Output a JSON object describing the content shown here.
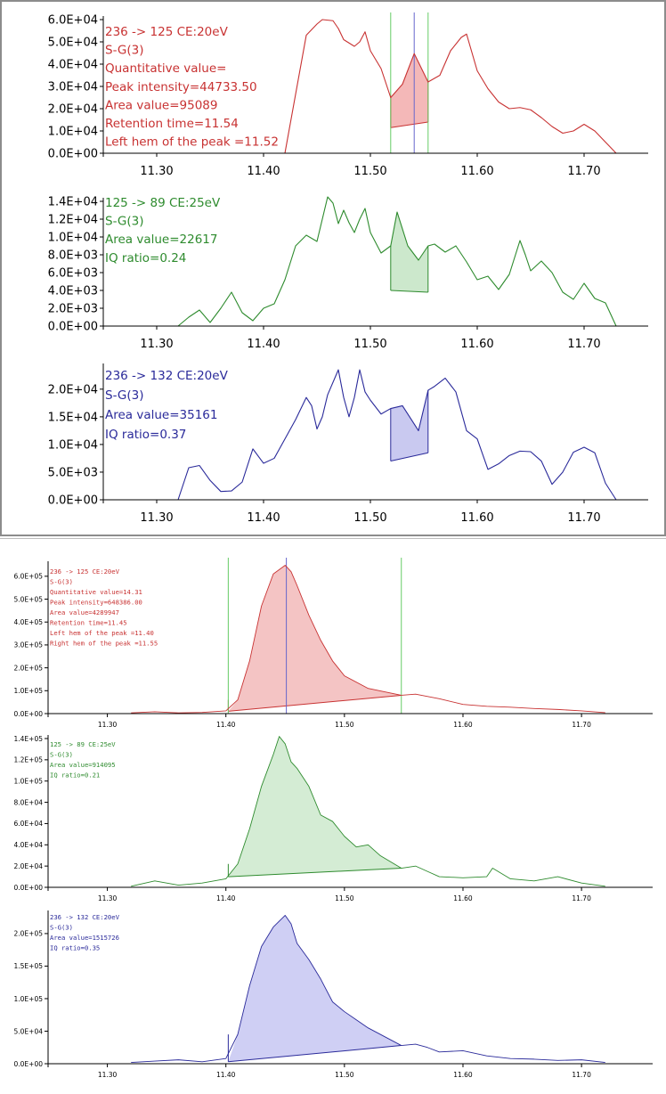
{
  "chart_data": [
    {
      "type": "line",
      "panel": "top",
      "channel": "236 -> 125 CE:20eV",
      "color": "#c83232",
      "fill_color": "#f4b8b8",
      "annotations": [
        "236 -> 125 CE:20eV",
        "S-G(3)",
        "Quantitative value=",
        "Peak intensity=44733.50",
        "Area value=95089",
        "Retention time=11.54",
        "Left hem of the peak =11.52"
      ],
      "xlim": [
        11.25,
        11.76
      ],
      "ylim": [
        0,
        60000
      ],
      "xticks": [
        11.3,
        11.4,
        11.5,
        11.6,
        11.7
      ],
      "xtick_labels": [
        "11.30",
        "11.40",
        "11.50",
        "11.60",
        "11.70"
      ],
      "yticks": [
        0,
        10000,
        20000,
        30000,
        40000,
        50000,
        60000
      ],
      "ytick_labels": [
        "0.0E+00",
        "1.0E+04",
        "2.0E+04",
        "3.0E+04",
        "4.0E+04",
        "5.0E+04",
        "6.0E+04"
      ],
      "markers": [
        {
          "x": 11.519,
          "color": "#66cc66"
        },
        {
          "x": 11.554,
          "color": "#66cc66"
        },
        {
          "x": 11.541,
          "color": "#6666cc"
        }
      ],
      "integration": {
        "x_start": 11.519,
        "x_end": 11.554,
        "baseline_start": 11500,
        "baseline_end": 14000
      },
      "x": [
        11.32,
        11.34,
        11.36,
        11.38,
        11.4,
        11.42,
        11.44,
        11.45,
        11.455,
        11.465,
        11.47,
        11.475,
        11.485,
        11.49,
        11.495,
        11.5,
        11.51,
        11.519,
        11.53,
        11.541,
        11.554,
        11.565,
        11.575,
        11.585,
        11.59,
        11.6,
        11.61,
        11.62,
        11.63,
        11.64,
        11.65,
        11.66,
        11.67,
        11.68,
        11.69,
        11.7,
        11.71,
        11.72,
        11.73
      ],
      "y": [
        0,
        0,
        0,
        0,
        0,
        0,
        53000,
        58000,
        60000,
        59500,
        56000,
        51000,
        48000,
        50000,
        54500,
        46000,
        38000,
        25000,
        31000,
        44733,
        32000,
        35000,
        46000,
        52000,
        53500,
        37000,
        29000,
        23000,
        20000,
        20500,
        19500,
        16000,
        12000,
        9000,
        10000,
        13000,
        10000,
        5000,
        0
      ]
    },
    {
      "type": "line",
      "panel": "top",
      "channel": "125 -> 89 CE:25eV",
      "color": "#2e8b2e",
      "fill_color": "#cce8cc",
      "annotations": [
        "125 -> 89 CE:25eV",
        "S-G(3)",
        "Area value=22617",
        "IQ ratio=0.24"
      ],
      "xlim": [
        11.25,
        11.76
      ],
      "ylim": [
        0,
        14000
      ],
      "xticks": [
        11.3,
        11.4,
        11.5,
        11.6,
        11.7
      ],
      "xtick_labels": [
        "11.30",
        "11.40",
        "11.50",
        "11.60",
        "11.70"
      ],
      "yticks": [
        0,
        2000,
        4000,
        6000,
        8000,
        10000,
        12000,
        14000
      ],
      "ytick_labels": [
        "0.0E+00",
        "2.0E+03",
        "4.0E+03",
        "6.0E+03",
        "8.0E+03",
        "1.0E+04",
        "1.2E+04",
        "1.4E+04"
      ],
      "integration": {
        "x_start": 11.519,
        "x_end": 11.554,
        "baseline_start": 4000,
        "baseline_end": 3800
      },
      "x": [
        11.32,
        11.33,
        11.34,
        11.35,
        11.36,
        11.37,
        11.38,
        11.39,
        11.4,
        11.41,
        11.42,
        11.43,
        11.44,
        11.45,
        11.46,
        11.465,
        11.47,
        11.475,
        11.48,
        11.485,
        11.49,
        11.495,
        11.5,
        11.51,
        11.519,
        11.525,
        11.535,
        11.545,
        11.554,
        11.56,
        11.57,
        11.58,
        11.59,
        11.6,
        11.61,
        11.62,
        11.63,
        11.64,
        11.645,
        11.65,
        11.66,
        11.67,
        11.68,
        11.69,
        11.7,
        11.71,
        11.72,
        11.73
      ],
      "y": [
        0,
        1000,
        1800,
        400,
        2000,
        3800,
        1500,
        600,
        2000,
        2500,
        5200,
        9000,
        10200,
        9500,
        14500,
        13800,
        11500,
        13000,
        11600,
        10500,
        12000,
        13200,
        10500,
        8200,
        9000,
        12800,
        9000,
        7400,
        9000,
        9200,
        8300,
        9000,
        7200,
        5200,
        5600,
        4100,
        5800,
        9600,
        8000,
        6200,
        7300,
        6000,
        3800,
        3000,
        4800,
        3100,
        2600,
        0
      ]
    },
    {
      "type": "line",
      "panel": "top",
      "channel": "236 -> 132 CE:20eV",
      "color": "#2a2a9a",
      "fill_color": "#c9c9f0",
      "annotations": [
        "236 -> 132 CE:20eV",
        "S-G(3)",
        "Area value=35161",
        "IQ ratio=0.37"
      ],
      "xlim": [
        11.25,
        11.76
      ],
      "ylim": [
        0,
        24000
      ],
      "xticks": [
        11.3,
        11.4,
        11.5,
        11.6,
        11.7
      ],
      "xtick_labels": [
        "11.30",
        "11.40",
        "11.50",
        "11.60",
        "11.70"
      ],
      "yticks": [
        0,
        5000,
        10000,
        15000,
        20000
      ],
      "ytick_labels": [
        "0.0E+00",
        "5.0E+03",
        "1.0E+04",
        "1.5E+04",
        "2.0E+04"
      ],
      "integration": {
        "x_start": 11.519,
        "x_end": 11.554,
        "baseline_start": 7000,
        "baseline_end": 8500
      },
      "x": [
        11.32,
        11.33,
        11.34,
        11.35,
        11.36,
        11.37,
        11.38,
        11.39,
        11.4,
        11.41,
        11.42,
        11.43,
        11.44,
        11.445,
        11.45,
        11.455,
        11.46,
        11.47,
        11.475,
        11.48,
        11.485,
        11.49,
        11.495,
        11.5,
        11.51,
        11.519,
        11.53,
        11.54,
        11.545,
        11.554,
        11.56,
        11.57,
        11.58,
        11.59,
        11.6,
        11.61,
        11.62,
        11.63,
        11.64,
        11.65,
        11.66,
        11.67,
        11.68,
        11.69,
        11.7,
        11.71,
        11.72,
        11.73
      ],
      "y": [
        0,
        5800,
        6200,
        3500,
        1500,
        1600,
        3200,
        9200,
        6600,
        7500,
        11000,
        14500,
        18500,
        17000,
        12800,
        15000,
        19000,
        23500,
        18500,
        15000,
        18500,
        23500,
        19500,
        18000,
        15500,
        16500,
        17000,
        14000,
        12500,
        19800,
        20500,
        22000,
        19500,
        12500,
        11000,
        5500,
        6500,
        8000,
        8800,
        8700,
        7000,
        2800,
        5000,
        8600,
        9500,
        8500,
        3000,
        0
      ]
    },
    {
      "type": "area",
      "panel": "bottom",
      "channel": "236 -> 125 CE:20eV",
      "color": "#c83232",
      "fill_color": "#f4c4c4",
      "annotations": [
        "236 -> 125 CE:20eV",
        "S-G(3)",
        "Quantitative value=14.31",
        "Peak intensity=648386.00",
        "Area value=4289947",
        "Retention time=11.45",
        "Left hem of the peak =11.40",
        "Right hem of the peak =11.55"
      ],
      "xlim": [
        11.25,
        11.76
      ],
      "ylim": [
        0,
        650000
      ],
      "xticks": [
        11.3,
        11.4,
        11.5,
        11.6,
        11.7
      ],
      "xtick_labels": [
        "11.30",
        "11.40",
        "11.50",
        "11.60",
        "11.70"
      ],
      "yticks": [
        0,
        100000,
        200000,
        300000,
        400000,
        500000,
        600000
      ],
      "ytick_labels": [
        "0.0E+00",
        "1.0E+05",
        "2.0E+05",
        "3.0E+05",
        "4.0E+05",
        "5.0E+05",
        "6.0E+05"
      ],
      "markers": [
        {
          "x": 11.402,
          "color": "#66cc66"
        },
        {
          "x": 11.548,
          "color": "#66cc66"
        },
        {
          "x": 11.451,
          "color": "#6666cc"
        }
      ],
      "integration": {
        "x_start": 11.402,
        "x_end": 11.548,
        "baseline_start": 10000,
        "baseline_end": 80000
      },
      "x": [
        11.32,
        11.34,
        11.36,
        11.38,
        11.4,
        11.41,
        11.42,
        11.43,
        11.44,
        11.45,
        11.455,
        11.46,
        11.47,
        11.48,
        11.49,
        11.5,
        11.52,
        11.548,
        11.56,
        11.58,
        11.6,
        11.62,
        11.64,
        11.66,
        11.68,
        11.7,
        11.72
      ],
      "y": [
        3000,
        8000,
        3000,
        5000,
        12000,
        60000,
        230000,
        470000,
        610000,
        648000,
        620000,
        560000,
        430000,
        320000,
        230000,
        165000,
        110000,
        80000,
        85000,
        65000,
        40000,
        32000,
        28000,
        22000,
        18000,
        12000,
        4000
      ]
    },
    {
      "type": "area",
      "panel": "bottom",
      "channel": "125 -> 89 CE:25eV",
      "color": "#2e8b2e",
      "fill_color": "#d4ecd4",
      "annotations": [
        "125 -> 89 CE:25eV",
        "S-G(3)",
        "Area value=914095",
        "IQ ratio=0.21"
      ],
      "xlim": [
        11.25,
        11.76
      ],
      "ylim": [
        0,
        140000
      ],
      "xticks": [
        11.3,
        11.4,
        11.5,
        11.6,
        11.7
      ],
      "xtick_labels": [
        "11.30",
        "11.40",
        "11.50",
        "11.60",
        "11.70"
      ],
      "yticks": [
        0,
        20000,
        40000,
        60000,
        80000,
        100000,
        120000,
        140000
      ],
      "ytick_labels": [
        "0.0E+00",
        "2.0E+04",
        "4.0E+04",
        "6.0E+04",
        "8.0E+04",
        "1.0E+05",
        "1.2E+05",
        "1.4E+05"
      ],
      "integration": {
        "x_start": 11.402,
        "x_end": 11.548,
        "baseline_start": 10000,
        "baseline_end": 18000
      },
      "x": [
        11.32,
        11.34,
        11.36,
        11.38,
        11.4,
        11.41,
        11.42,
        11.43,
        11.44,
        11.445,
        11.45,
        11.455,
        11.46,
        11.47,
        11.48,
        11.49,
        11.5,
        11.51,
        11.52,
        11.53,
        11.548,
        11.56,
        11.57,
        11.58,
        11.6,
        11.62,
        11.625,
        11.64,
        11.66,
        11.68,
        11.7,
        11.72
      ],
      "y": [
        1000,
        6000,
        2000,
        4000,
        8000,
        22000,
        55000,
        95000,
        125000,
        142000,
        135000,
        118000,
        112000,
        95000,
        68000,
        62000,
        48000,
        38000,
        40000,
        30000,
        18000,
        20000,
        15000,
        10000,
        9000,
        10000,
        18000,
        8000,
        6000,
        10000,
        4000,
        1000
      ]
    },
    {
      "type": "area",
      "panel": "bottom",
      "channel": "236 -> 132 CE:20eV",
      "color": "#2a2a9a",
      "fill_color": "#cfcff4",
      "annotations": [
        "236 -> 132 CE:20eV",
        "S-G(3)",
        "Area value=1515726",
        "IQ ratio=0.35"
      ],
      "xlim": [
        11.25,
        11.76
      ],
      "ylim": [
        0,
        230000
      ],
      "xticks": [
        11.3,
        11.4,
        11.5,
        11.6,
        11.7
      ],
      "xtick_labels": [
        "11.30",
        "11.40",
        "11.50",
        "11.60",
        "11.70"
      ],
      "yticks": [
        0,
        50000,
        100000,
        150000,
        200000
      ],
      "ytick_labels": [
        "0.0E+00",
        "5.0E+04",
        "1.0E+05",
        "1.5E+05",
        "2.0E+05"
      ],
      "integration": {
        "x_start": 11.402,
        "x_end": 11.548,
        "baseline_start": 3000,
        "baseline_end": 28000
      },
      "x": [
        11.32,
        11.34,
        11.36,
        11.38,
        11.4,
        11.41,
        11.42,
        11.43,
        11.44,
        11.45,
        11.455,
        11.46,
        11.47,
        11.48,
        11.49,
        11.5,
        11.52,
        11.548,
        11.56,
        11.57,
        11.58,
        11.6,
        11.62,
        11.64,
        11.66,
        11.68,
        11.7,
        11.72
      ],
      "y": [
        2000,
        4000,
        6000,
        3000,
        8000,
        45000,
        120000,
        180000,
        210000,
        228000,
        215000,
        185000,
        160000,
        130000,
        95000,
        80000,
        55000,
        28000,
        30000,
        25000,
        18000,
        20000,
        12000,
        8000,
        7000,
        5000,
        6000,
        2000
      ]
    }
  ]
}
